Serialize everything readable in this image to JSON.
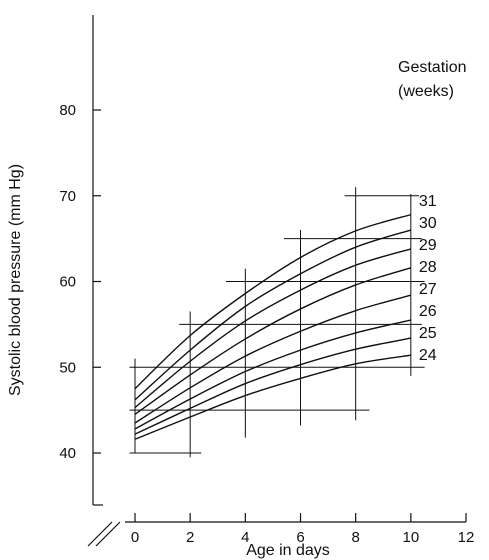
{
  "chart_data": {
    "type": "line",
    "xlabel": "Age in days",
    "ylabel": "Systolic blood pressure (mm Hg)",
    "legend_title_lines": [
      "Gestation",
      "(weeks)"
    ],
    "xlim": [
      0,
      12
    ],
    "ylim": [
      40,
      80
    ],
    "x_ticks": [
      0,
      2,
      4,
      6,
      8,
      10,
      12
    ],
    "y_ticks": [
      40,
      50,
      60,
      70,
      80
    ],
    "axis_break": true,
    "grid": false,
    "legend_position": "right, labels at line ends",
    "x": [
      0,
      2,
      4,
      6,
      8,
      10
    ],
    "series": [
      {
        "name": "24",
        "values": [
          41.6,
          44.2,
          46.7,
          48.7,
          50.4,
          51.4
        ]
      },
      {
        "name": "25",
        "values": [
          42.2,
          45.2,
          48.1,
          50.3,
          52.1,
          53.4
        ]
      },
      {
        "name": "26",
        "values": [
          42.8,
          46.3,
          49.5,
          52.0,
          54.0,
          55.5
        ]
      },
      {
        "name": "27",
        "values": [
          43.5,
          47.6,
          51.3,
          54.2,
          56.6,
          58.4
        ]
      },
      {
        "name": "28",
        "values": [
          44.5,
          49.1,
          53.3,
          56.8,
          59.6,
          61.6
        ]
      },
      {
        "name": "29",
        "values": [
          45.3,
          50.7,
          55.4,
          59.0,
          61.9,
          63.8
        ]
      },
      {
        "name": "30",
        "values": [
          46.2,
          52.0,
          57.1,
          60.9,
          64.0,
          66.0
        ]
      },
      {
        "name": "31",
        "values": [
          47.5,
          53.7,
          58.6,
          62.8,
          65.9,
          67.8
        ]
      }
    ],
    "range_markers": [
      {
        "x": 0,
        "y_low": 40,
        "y_high": 51
      },
      {
        "x": 2,
        "y_low": 39.5,
        "y_high": 56.5
      },
      {
        "x": 4,
        "y_low": 41.8,
        "y_high": 61.5
      },
      {
        "x": 6,
        "y_low": 43.2,
        "y_high": 66
      },
      {
        "x": 8,
        "y_low": 43.8,
        "y_high": 71
      },
      {
        "x": 10,
        "y_low": 49,
        "y_high": 70.2
      },
      {
        "y": 40,
        "x_low": -0.2,
        "x_high": 2.4
      },
      {
        "y": 45,
        "x_low": -0.2,
        "x_high": 8.5
      },
      {
        "y": 50,
        "x_low": -0.2,
        "x_high": 10.5
      },
      {
        "y": 55,
        "x_low": 1.6,
        "x_high": 10.4
      },
      {
        "y": 60,
        "x_low": 3.3,
        "x_high": 10.5
      },
      {
        "y": 65,
        "x_low": 5.4,
        "x_high": 10.4
      },
      {
        "y": 70,
        "x_low": 7.6,
        "x_high": 10.3
      }
    ]
  }
}
